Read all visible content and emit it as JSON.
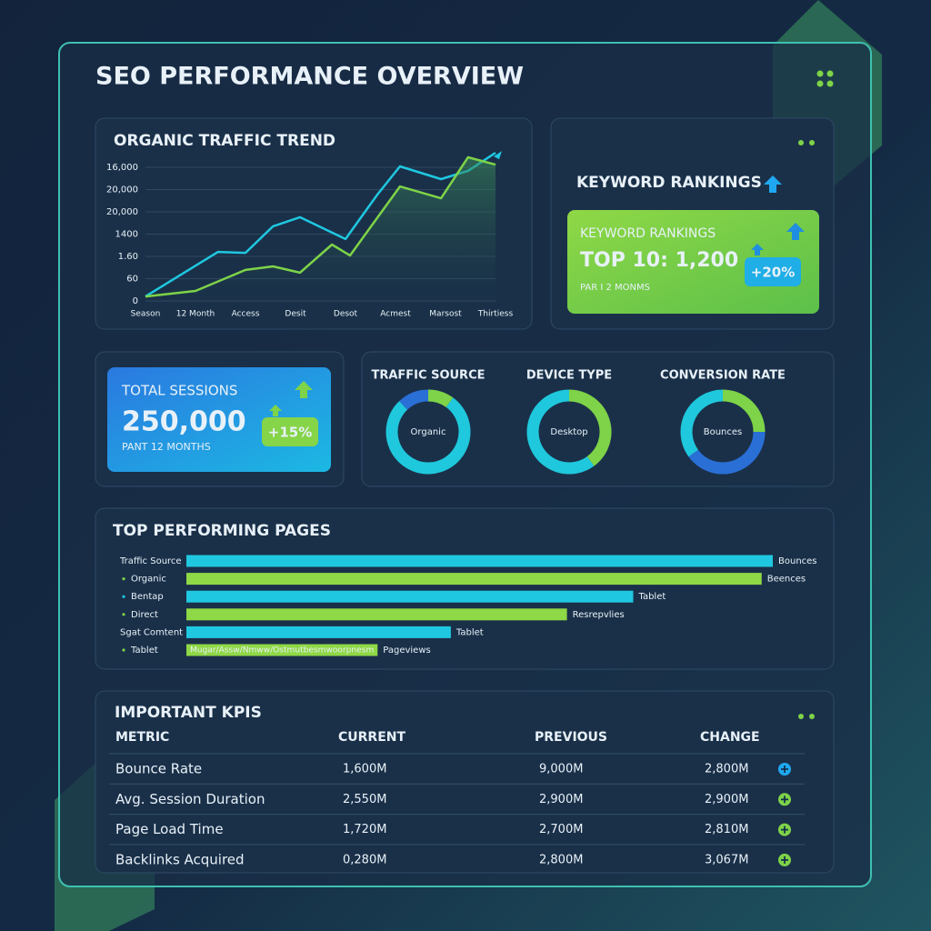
{
  "header": {
    "title": "SEO PERFORMANCE OVERVIEW"
  },
  "traffic_chart": {
    "type": "line",
    "title": "ORGANIC TRAFFIC TREND",
    "xlim": [
      0,
      7
    ],
    "xticks": [
      {
        "value": 0,
        "label": "Season"
      },
      {
        "value": 1,
        "label": "12 Month"
      },
      {
        "value": 2,
        "label": "Access"
      },
      {
        "value": 3,
        "label": "Desit"
      },
      {
        "value": 4,
        "label": "Desot"
      },
      {
        "value": 5,
        "label": "Acmest"
      },
      {
        "value": 6,
        "label": "Marsost"
      },
      {
        "value": 7,
        "label": "Thirtiess"
      }
    ],
    "ylim": [
      0,
      6.8
    ],
    "yticks": [
      0,
      {
        "value": 1,
        "label": "60"
      },
      {
        "value": 2,
        "label": "1.60"
      },
      {
        "value": 3,
        "label": "1400"
      },
      {
        "value": 4,
        "label": "20,000"
      },
      {
        "value": 5,
        "label": "20,000"
      },
      {
        "value": 6,
        "label": "16,000"
      }
    ],
    "grid": true,
    "series": [
      {
        "color": "#1fc8e0",
        "x": [
          0,
          1.45,
          2,
          2.55,
          3.09,
          4,
          4.64,
          5.09,
          5.91,
          6.45,
          7
        ],
        "values": [
          0.2,
          2.2,
          2.16,
          3.35,
          3.76,
          2.78,
          4.78,
          6.04,
          5.47,
          5.84,
          6.65
        ]
      },
      {
        "color": "#7ed348",
        "x": [
          0,
          1,
          2,
          2.55,
          3.09,
          3.73,
          4.09,
          5.09,
          5.91,
          6.45,
          7
        ],
        "values": [
          0.2,
          0.45,
          1.39,
          1.55,
          1.27,
          2.53,
          2.04,
          5.14,
          4.61,
          6.45,
          6.12
        ]
      }
    ]
  },
  "keyword_rankings": {
    "title": "KEYWORD RANKINGS",
    "card_title": "KEYWORD RANKINGS",
    "headline": "TOP 10: 1,200",
    "subtitle": "PAR I 2 MONMS",
    "change": "+20%"
  },
  "total_sessions": {
    "title": "TOTAL SESSIONS",
    "value": "250,000",
    "subtitle": "PANT 12 MONTHS",
    "change": "+15%"
  },
  "donuts": [
    {
      "type": "pie",
      "title": "TRAFFIC SOURCE",
      "center_label": "Organic",
      "values": [
        10,
        78,
        12
      ],
      "colors": [
        "#7ed348",
        "#1fc8dc",
        "#2a6fd6"
      ]
    },
    {
      "type": "pie",
      "title": "DEVICE TYPE",
      "center_label": "Desktop",
      "values": [
        40,
        60
      ],
      "colors": [
        "#7ed348",
        "#1fc8dc"
      ]
    },
    {
      "type": "pie",
      "title": "CONVERSION RATE",
      "center_label": "Bounces",
      "values": [
        25,
        40,
        35
      ],
      "colors": [
        "#7ed348",
        "#2a6fd6",
        "#1fc8dc"
      ]
    }
  ],
  "top_pages": {
    "type": "bar",
    "title": "TOP PERFORMING PAGES",
    "categories": [
      "Traffic Source",
      "Organic",
      "Bentap",
      "Direct",
      "Sgat Comtent",
      "Tablet"
    ],
    "values": [
      100,
      98.1,
      76.2,
      64.9,
      45.1,
      32.6
    ],
    "end_labels": [
      "Bounces",
      "Beences",
      "Tablet",
      "Resrepvlies",
      "Tablet",
      "Pageviews"
    ],
    "colors": [
      "#1fc8e0",
      "#8fd846",
      "#1fc8e0",
      "#8fd846",
      "#1fc8e0",
      "#8fd846"
    ],
    "xlim": [
      0,
      100
    ],
    "inner_label": "Mugar/Assw/Nmww/Ostmutbesmwoorpnesm"
  },
  "kpis": {
    "title": "IMPORTANT KPIS",
    "columns": [
      "METRIC",
      "CURRENT",
      "PREVIOUS",
      "CHANGE"
    ],
    "rows": [
      [
        "Bounce Rate",
        "1,600M",
        "9,000M",
        "2,800M"
      ],
      [
        "Avg. Session Duration",
        "2,550M",
        "2,900M",
        "2,900M"
      ],
      [
        "Page Load Time",
        "1,720M",
        "2,700M",
        "2,810M"
      ],
      [
        "Backlinks Acquired",
        "0,280M",
        "2,800M",
        "3,067M"
      ]
    ]
  }
}
